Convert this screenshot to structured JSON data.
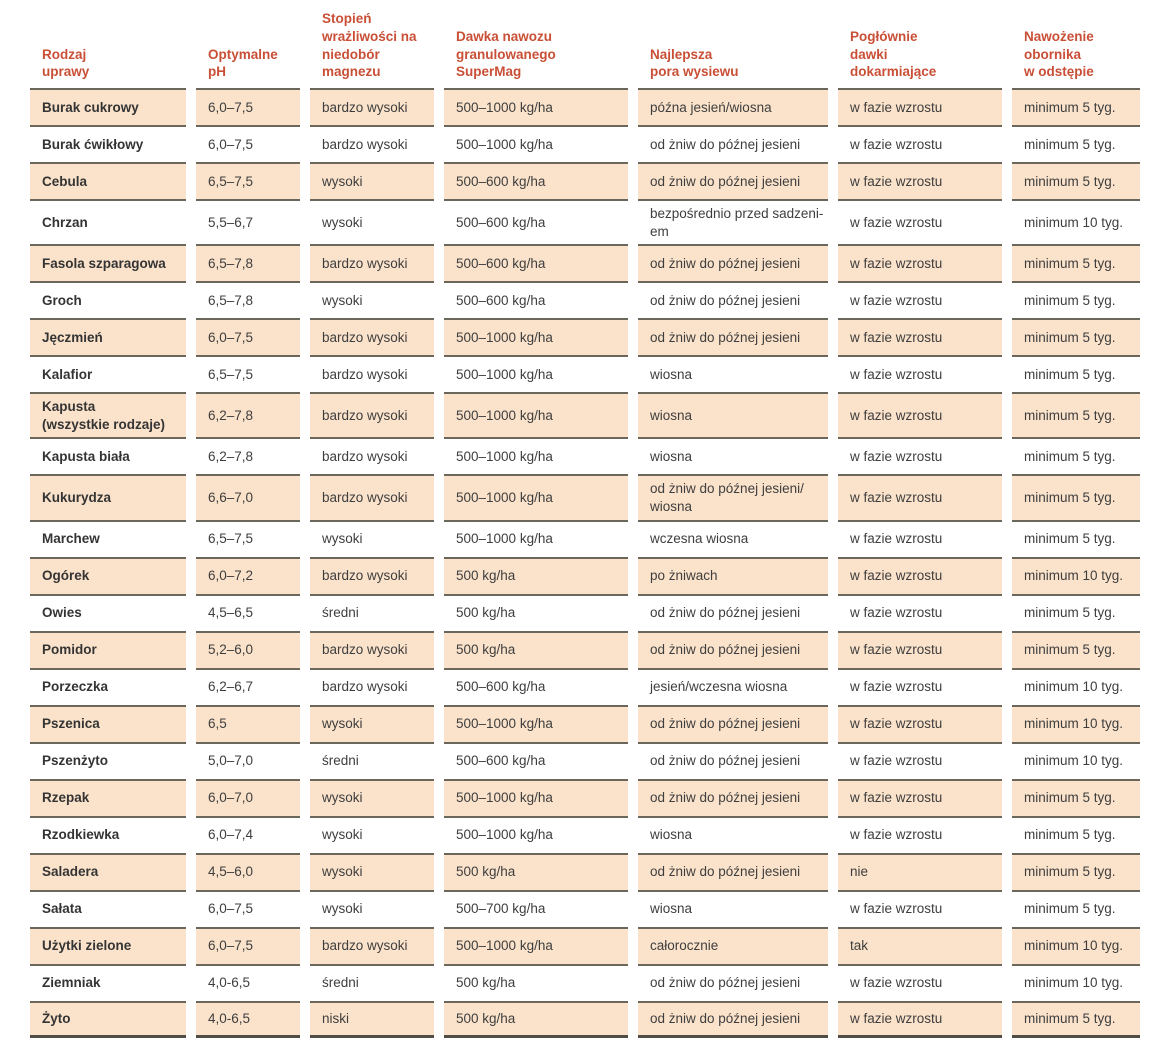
{
  "colors": {
    "header_text": "#c94f36",
    "row_stripe": "#fbe3cb",
    "row_plain": "#ffffff",
    "row_border": "#6b675d",
    "body_text": "#3e3e3e"
  },
  "table": {
    "columns": [
      {
        "label": "Rodzaj\nuprawy"
      },
      {
        "label": "Optymalne\npH"
      },
      {
        "label": "Stopień\nwrażliwości na\nniedobór magnezu"
      },
      {
        "label": "Dawka nawozu\ngranulowanego SuperMag"
      },
      {
        "label": "Najlepsza\npora wysiewu"
      },
      {
        "label": "Pogłównie\ndawki\ndokarmiające"
      },
      {
        "label": "Nawożenie\nobornika\nw odstępie"
      }
    ],
    "rows": [
      {
        "crop": "Burak cukrowy",
        "ph": "6,0–7,5",
        "sensitivity": "bardzo wysoki",
        "dose": "500–1000 kg/ha",
        "sowing": "późna jesień/wiosna",
        "topdress": "w fazie wzrostu",
        "manure": "minimum 5 tyg."
      },
      {
        "crop": "Burak ćwikłowy",
        "ph": "6,0–7,5",
        "sensitivity": "bardzo wysoki",
        "dose": "500–1000 kg/ha",
        "sowing": "od żniw do późnej jesieni",
        "topdress": "w fazie wzrostu",
        "manure": "minimum 5 tyg."
      },
      {
        "crop": "Cebula",
        "ph": "6,5–7,5",
        "sensitivity": "wysoki",
        "dose": "500–600 kg/ha",
        "sowing": "od żniw do późnej jesieni",
        "topdress": "w fazie wzrostu",
        "manure": "minimum 5 tyg."
      },
      {
        "crop": "Chrzan",
        "ph": "5,5–6,7",
        "sensitivity": "wysoki",
        "dose": "500–600 kg/ha",
        "sowing": "bezpośrednio przed sadzeni-\nem",
        "topdress": "w fazie wzrostu",
        "manure": "minimum 10 tyg."
      },
      {
        "crop": "Fasola szparagowa",
        "ph": "6,5–7,8",
        "sensitivity": "bardzo wysoki",
        "dose": "500–600 kg/ha",
        "sowing": "od żniw do późnej jesieni",
        "topdress": "w fazie wzrostu",
        "manure": "minimum 5 tyg."
      },
      {
        "crop": "Groch",
        "ph": "6,5–7,8",
        "sensitivity": "wysoki",
        "dose": "500–600 kg/ha",
        "sowing": "od żniw do późnej jesieni",
        "topdress": "w fazie wzrostu",
        "manure": "minimum 5 tyg."
      },
      {
        "crop": "Jęczmień",
        "ph": "6,0–7,5",
        "sensitivity": "bardzo wysoki",
        "dose": "500–1000 kg/ha",
        "sowing": "od żniw do późnej jesieni",
        "topdress": "w fazie wzrostu",
        "manure": "minimum 5 tyg."
      },
      {
        "crop": "Kalafior",
        "ph": "6,5–7,5",
        "sensitivity": "bardzo wysoki",
        "dose": "500–1000 kg/ha",
        "sowing": "wiosna",
        "topdress": "w fazie wzrostu",
        "manure": "minimum 5 tyg."
      },
      {
        "crop": "Kapusta\n(wszystkie rodzaje)",
        "ph": "6,2–7,8",
        "sensitivity": "bardzo wysoki",
        "dose": "500–1000 kg/ha",
        "sowing": "wiosna",
        "topdress": "w fazie wzrostu",
        "manure": "minimum 5 tyg."
      },
      {
        "crop": "Kapusta biała",
        "ph": "6,2–7,8",
        "sensitivity": "bardzo wysoki",
        "dose": "500–1000 kg/ha",
        "sowing": "wiosna",
        "topdress": "w fazie wzrostu",
        "manure": "minimum 5 tyg."
      },
      {
        "crop": "Kukurydza",
        "ph": "6,6–7,0",
        "sensitivity": "bardzo wysoki",
        "dose": "500–1000 kg/ha",
        "sowing": "od żniw do późnej jesieni/\nwiosna",
        "topdress": "w fazie wzrostu",
        "manure": "minimum 5 tyg."
      },
      {
        "crop": "Marchew",
        "ph": "6,5–7,5",
        "sensitivity": "wysoki",
        "dose": "500–1000 kg/ha",
        "sowing": "wczesna wiosna",
        "topdress": "w fazie wzrostu",
        "manure": "minimum 5 tyg."
      },
      {
        "crop": "Ogórek",
        "ph": "6,0–7,2",
        "sensitivity": "bardzo wysoki",
        "dose": "500 kg/ha",
        "sowing": "po żniwach",
        "topdress": "w fazie wzrostu",
        "manure": "minimum 10 tyg."
      },
      {
        "crop": "Owies",
        "ph": "4,5–6,5",
        "sensitivity": "średni",
        "dose": "500 kg/ha",
        "sowing": "od żniw do późnej jesieni",
        "topdress": "w fazie wzrostu",
        "manure": "minimum 5 tyg."
      },
      {
        "crop": "Pomidor",
        "ph": "5,2–6,0",
        "sensitivity": "bardzo wysoki",
        "dose": "500 kg/ha",
        "sowing": "od żniw do późnej jesieni",
        "topdress": "w fazie wzrostu",
        "manure": "minimum 5 tyg."
      },
      {
        "crop": "Porzeczka",
        "ph": "6,2–6,7",
        "sensitivity": "bardzo wysoki",
        "dose": "500–600 kg/ha",
        "sowing": "jesień/wczesna wiosna",
        "topdress": "w fazie wzrostu",
        "manure": "minimum 10 tyg."
      },
      {
        "crop": "Pszenica",
        "ph": "6,5",
        "sensitivity": "wysoki",
        "dose": "500–1000 kg/ha",
        "sowing": "od żniw do późnej jesieni",
        "topdress": "w fazie wzrostu",
        "manure": "minimum 10 tyg."
      },
      {
        "crop": "Pszenżyto",
        "ph": "5,0–7,0",
        "sensitivity": "średni",
        "dose": "500–600 kg/ha",
        "sowing": "od żniw do późnej jesieni",
        "topdress": "w fazie wzrostu",
        "manure": "minimum 10 tyg."
      },
      {
        "crop": "Rzepak",
        "ph": "6,0–7,0",
        "sensitivity": "wysoki",
        "dose": "500–1000 kg/ha",
        "sowing": "od żniw do późnej jesieni",
        "topdress": "w fazie wzrostu",
        "manure": "minimum 5 tyg."
      },
      {
        "crop": "Rzodkiewka",
        "ph": "6,0–7,4",
        "sensitivity": "wysoki",
        "dose": "500–1000 kg/ha",
        "sowing": "wiosna",
        "topdress": "w fazie wzrostu",
        "manure": "minimum 5 tyg."
      },
      {
        "crop": "Saladera",
        "ph": "4,5–6,0",
        "sensitivity": "wysoki",
        "dose": "500 kg/ha",
        "sowing": "od żniw do późnej jesieni",
        "topdress": "nie",
        "manure": "minimum 5 tyg."
      },
      {
        "crop": "Sałata",
        "ph": "6,0–7,5",
        "sensitivity": "wysoki",
        "dose": "500–700 kg/ha",
        "sowing": "wiosna",
        "topdress": "w fazie wzrostu",
        "manure": "minimum 5 tyg."
      },
      {
        "crop": "Użytki zielone",
        "ph": "6,0–7,5",
        "sensitivity": "bardzo wysoki",
        "dose": "500–1000 kg/ha",
        "sowing": "całorocznie",
        "topdress": "tak",
        "manure": "minimum 10 tyg."
      },
      {
        "crop": "Ziemniak",
        "ph": "4,0-6,5",
        "sensitivity": "średni",
        "dose": "500 kg/ha",
        "sowing": "od żniw do późnej jesieni",
        "topdress": "w fazie wzrostu",
        "manure": "minimum 10 tyg."
      },
      {
        "crop": "Żyto",
        "ph": "4,0-6,5",
        "sensitivity": "niski",
        "dose": "500 kg/ha",
        "sowing": "od żniw do późnej jesieni",
        "topdress": "w fazie wzrostu",
        "manure": "minimum 5 tyg."
      }
    ]
  }
}
